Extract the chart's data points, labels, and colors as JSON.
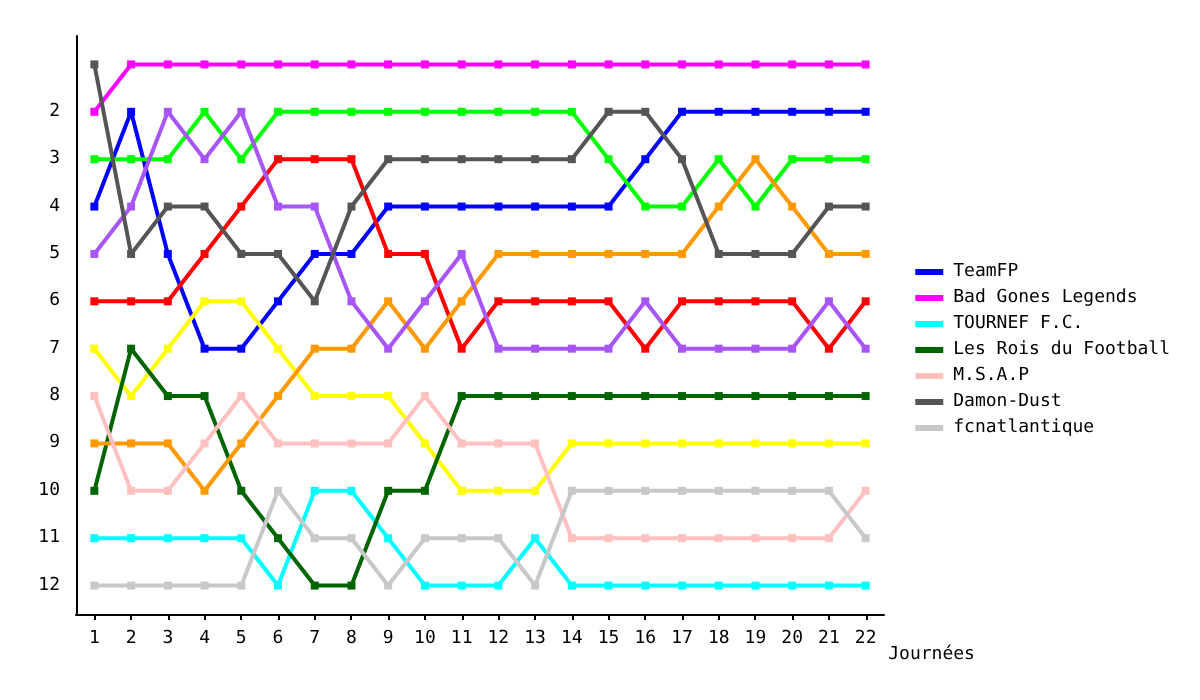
{
  "chart_data": {
    "type": "line",
    "xlabel": "Journées",
    "x": [
      1,
      2,
      3,
      4,
      5,
      6,
      7,
      8,
      9,
      10,
      11,
      12,
      13,
      14,
      15,
      16,
      17,
      18,
      19,
      20,
      21,
      22
    ],
    "xlim": [
      0.5,
      22.5
    ],
    "xticks": [
      1,
      2,
      3,
      4,
      5,
      6,
      7,
      8,
      9,
      10,
      11,
      12,
      13,
      14,
      15,
      16,
      17,
      18,
      19,
      20,
      21,
      22
    ],
    "ylim": [
      12.6,
      0.4
    ],
    "yticks": [
      2,
      3,
      4,
      5,
      6,
      7,
      8,
      9,
      10,
      11,
      12
    ],
    "grid": false,
    "legend": "right",
    "marker": "square",
    "line_style": "solid",
    "series": [
      {
        "name": "TeamFP",
        "color": "#0000ff",
        "values": [
          4,
          2,
          5,
          7,
          7,
          6,
          5,
          5,
          4,
          4,
          4,
          4,
          4,
          4,
          4,
          3,
          2,
          2,
          2,
          2,
          2,
          2
        ]
      },
      {
        "color": "#ff0000",
        "values": [
          6,
          6,
          6,
          5,
          4,
          3,
          3,
          3,
          5,
          5,
          7,
          6,
          6,
          6,
          6,
          7,
          6,
          6,
          6,
          6,
          7,
          6
        ]
      },
      {
        "color": "#ffff00",
        "values": [
          7,
          8,
          7,
          6,
          6,
          7,
          8,
          8,
          8,
          9,
          10,
          10,
          10,
          9,
          9,
          9,
          9,
          9,
          9,
          9,
          9,
          9
        ]
      },
      {
        "color": "#00ff00",
        "values": [
          3,
          3,
          3,
          2,
          3,
          2,
          2,
          2,
          2,
          2,
          2,
          2,
          2,
          2,
          3,
          4,
          4,
          3,
          4,
          3,
          3,
          3
        ]
      },
      {
        "name": "Bad Gones Legends",
        "color": "#ff00ff",
        "values": [
          2,
          1,
          1,
          1,
          1,
          1,
          1,
          1,
          1,
          1,
          1,
          1,
          1,
          1,
          1,
          1,
          1,
          1,
          1,
          1,
          1,
          1
        ]
      },
      {
        "name": "TOURNEF F.C.",
        "color": "#00ffff",
        "values": [
          11,
          11,
          11,
          11,
          11,
          12,
          10,
          10,
          11,
          12,
          12,
          12,
          11,
          12,
          12,
          12,
          12,
          12,
          12,
          12,
          12,
          12
        ]
      },
      {
        "name": "Les Rois du Football",
        "color": "#006400",
        "values": [
          10,
          7,
          8,
          8,
          10,
          11,
          12,
          12,
          10,
          10,
          8,
          8,
          8,
          8,
          8,
          8,
          8,
          8,
          8,
          8,
          8,
          8
        ]
      },
      {
        "color": "#ff9900",
        "values": [
          9,
          9,
          9,
          10,
          9,
          8,
          7,
          7,
          6,
          7,
          6,
          5,
          5,
          5,
          5,
          5,
          5,
          4,
          3,
          4,
          5,
          5
        ]
      },
      {
        "name": "M.S.A.P",
        "color": "#ffc0c0",
        "values": [
          8,
          10,
          10,
          9,
          8,
          9,
          9,
          9,
          9,
          8,
          9,
          9,
          9,
          11,
          11,
          11,
          11,
          11,
          11,
          11,
          11,
          10
        ]
      },
      {
        "color": "#a855f7",
        "values": [
          5,
          4,
          2,
          3,
          2,
          4,
          4,
          6,
          7,
          6,
          5,
          7,
          7,
          7,
          7,
          6,
          7,
          7,
          7,
          7,
          6,
          7
        ]
      },
      {
        "name": "Damon-Dust",
        "color": "#555555",
        "values": [
          1,
          5,
          4,
          4,
          5,
          5,
          6,
          4,
          3,
          3,
          3,
          3,
          3,
          3,
          2,
          2,
          3,
          5,
          5,
          5,
          4,
          4
        ]
      },
      {
        "name": "fcnatlantique",
        "color": "#c8c8c8",
        "values": [
          12,
          12,
          12,
          12,
          12,
          10,
          11,
          11,
          12,
          11,
          11,
          11,
          12,
          10,
          10,
          10,
          10,
          10,
          10,
          10,
          10,
          11
        ]
      }
    ]
  }
}
